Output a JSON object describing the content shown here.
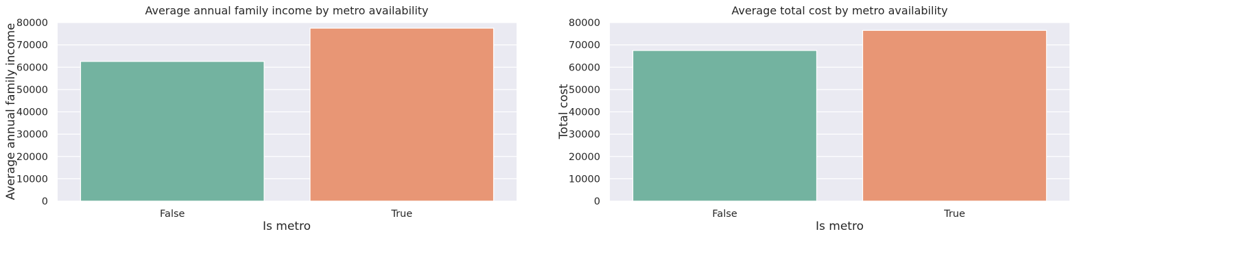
{
  "chart_data": [
    {
      "type": "bar",
      "title": "Average annual family income by metro availability",
      "xlabel": "Is metro",
      "ylabel": "Average annual family income",
      "categories": [
        "False",
        "True"
      ],
      "values": [
        62600,
        77500
      ],
      "ylim": [
        0,
        80000
      ],
      "yticks": [
        0,
        10000,
        20000,
        30000,
        40000,
        50000,
        60000,
        70000,
        80000
      ],
      "colors": [
        "#73b3a0",
        "#e89675"
      ],
      "grid": true,
      "background": "#eaeaf2"
    },
    {
      "type": "bar",
      "title": "Average total cost by metro availability",
      "xlabel": "Is metro",
      "ylabel": "Total cost",
      "categories": [
        "False",
        "True"
      ],
      "values": [
        67500,
        76500
      ],
      "ylim": [
        0,
        80000
      ],
      "yticks": [
        0,
        10000,
        20000,
        30000,
        40000,
        50000,
        60000,
        70000,
        80000
      ],
      "colors": [
        "#73b3a0",
        "#e89675"
      ],
      "grid": true,
      "background": "#eaeaf2"
    }
  ]
}
